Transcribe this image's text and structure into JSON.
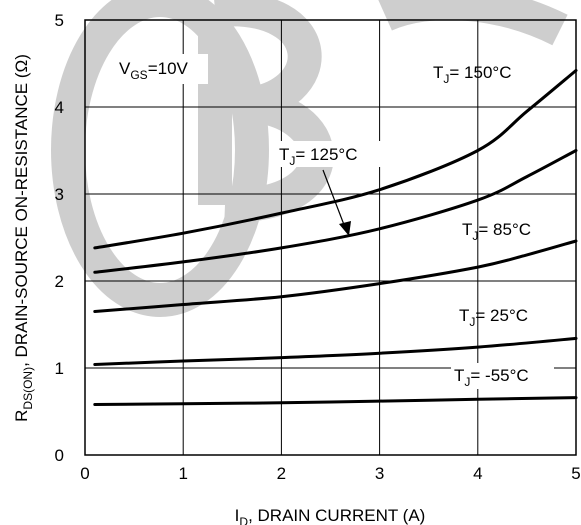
{
  "chart_data": {
    "type": "line",
    "xlim": [
      0,
      5
    ],
    "ylim": [
      0,
      5
    ],
    "x_ticks": [
      "0",
      "1",
      "2",
      "3",
      "4",
      "5"
    ],
    "y_ticks": [
      "0",
      "1",
      "2",
      "3",
      "4",
      "5"
    ],
    "grid": true,
    "xlabel": {
      "main": "I",
      "sub": "D",
      "rest": ", DRAIN CURRENT (A)"
    },
    "ylabel": {
      "main": "R",
      "sub": "DS(ON)",
      "rest": ", DRAIN-SOURCE ON-RESISTANCE (Ω)"
    },
    "condition": {
      "main": "V",
      "sub": "GS",
      "rest": "=10V"
    },
    "series": [
      {
        "name": "T_J= 150°C",
        "label_main": "T",
        "label_sub": "J",
        "label_rest": "= 150°C",
        "x": [
          0.1,
          1,
          2,
          3,
          4,
          4.5,
          5
        ],
        "y": [
          2.38,
          2.55,
          2.78,
          3.05,
          3.5,
          3.95,
          4.42
        ]
      },
      {
        "name": "T_J= 125°C",
        "label_main": "T",
        "label_sub": "J",
        "label_rest": "= 125°C",
        "x": [
          0.1,
          1,
          2,
          3,
          4,
          4.5,
          5
        ],
        "y": [
          2.1,
          2.22,
          2.38,
          2.6,
          2.93,
          3.2,
          3.5
        ]
      },
      {
        "name": "T_J= 85°C",
        "label_main": "T",
        "label_sub": "J",
        "label_rest": "= 85°C",
        "x": [
          0.1,
          1,
          2,
          3,
          4,
          4.5,
          5
        ],
        "y": [
          1.65,
          1.73,
          1.82,
          1.97,
          2.16,
          2.3,
          2.46
        ]
      },
      {
        "name": "T_J= 25°C",
        "label_main": "T",
        "label_sub": "J",
        "label_rest": "= 25°C",
        "x": [
          0.1,
          1,
          2,
          3,
          4,
          5
        ],
        "y": [
          1.04,
          1.08,
          1.12,
          1.17,
          1.24,
          1.34
        ]
      },
      {
        "name": "T_J= -55°C",
        "label_main": "T",
        "label_sub": "J",
        "label_rest": "= -55°C",
        "x": [
          0.1,
          1,
          2,
          3,
          4,
          5
        ],
        "y": [
          0.58,
          0.59,
          0.6,
          0.62,
          0.64,
          0.66
        ]
      }
    ]
  }
}
